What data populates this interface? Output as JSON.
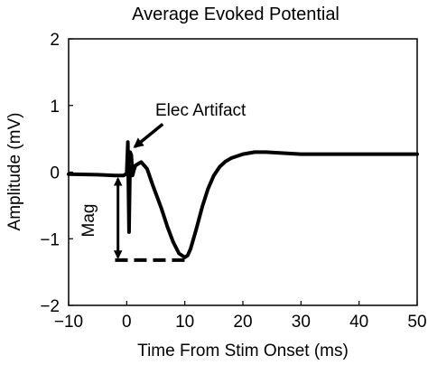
{
  "chart_data": {
    "type": "line",
    "title": "Average Evoked Potential",
    "xlabel": "Time From Stim Onset (ms)",
    "ylabel": "Amplitude (mV)",
    "xlim": [
      -10,
      50
    ],
    "ylim": [
      -2,
      2
    ],
    "x_ticks": [
      -10,
      0,
      10,
      20,
      30,
      40,
      50
    ],
    "x_tick_labels": [
      "−10",
      "0",
      "10",
      "20",
      "30",
      "40",
      "50"
    ],
    "y_ticks": [
      -2,
      -1,
      0,
      1,
      2
    ],
    "y_tick_labels": [
      "−2",
      "−1",
      "0",
      "1",
      "2"
    ],
    "grid": false,
    "series": [
      {
        "color": "#000000",
        "x": [
          -10,
          -5,
          -2,
          -0.5,
          0,
          0.2,
          0.4,
          0.6,
          0.8,
          1.0,
          1.2,
          1.5,
          2.5,
          3.5,
          4.5,
          6,
          7,
          8,
          9,
          10,
          10.5,
          11,
          12,
          13,
          14,
          15,
          16,
          17,
          18,
          20,
          22,
          24,
          26,
          30,
          40,
          50
        ],
        "y": [
          -0.03,
          -0.04,
          -0.05,
          -0.05,
          -0.02,
          0.45,
          -0.9,
          0.3,
          0.25,
          -0.05,
          0.02,
          0.1,
          0.15,
          0.05,
          -0.2,
          -0.55,
          -0.82,
          -1.05,
          -1.22,
          -1.28,
          -1.25,
          -1.15,
          -0.85,
          -0.52,
          -0.25,
          -0.05,
          0.08,
          0.16,
          0.21,
          0.27,
          0.3,
          0.3,
          0.29,
          0.27,
          0.27,
          0.27
        ]
      }
    ],
    "annotations": {
      "artifact_label": "Elec Artifact",
      "artifact_arrow_from": [
        6.2,
        0.72
      ],
      "artifact_arrow_to": [
        1.4,
        0.38
      ],
      "mag_label": "Mag",
      "mag_x": -1.5,
      "mag_top": -0.1,
      "mag_bottom": -1.28,
      "baseline_dash_y": -1.32,
      "baseline_dash_x": [
        -2,
        10.5
      ]
    }
  }
}
